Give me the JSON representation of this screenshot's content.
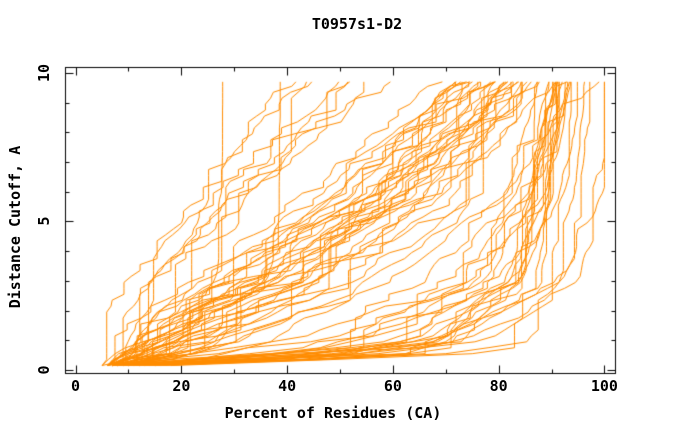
{
  "page": {
    "background": "#ffffff"
  },
  "chart_data": {
    "type": "line",
    "title": "T0957s1-D2",
    "xlabel": "Percent of Residues (CA)",
    "ylabel": "Distance Cutoff, A",
    "xlim": [
      0,
      100
    ],
    "ylim": [
      0,
      10
    ],
    "frame_xlim": [
      -2,
      102
    ],
    "frame_ylim": [
      -0.1,
      10.2
    ],
    "x_major_ticks": [
      0,
      20,
      40,
      60,
      80,
      100
    ],
    "x_minor_ticks": [
      10,
      30,
      50,
      70,
      90
    ],
    "y_major_ticks": [
      0,
      5,
      10
    ],
    "y_minor_ticks": [
      1,
      2,
      3,
      4,
      6,
      7,
      8,
      9
    ],
    "grid": false,
    "legend": "none",
    "tick_style": "inward, mirrored on all four sides",
    "frame_color": "#000000",
    "line_color": "#ff8c00",
    "series_model": {
      "description": "One orange curve per predicted model: percent of CA residues (x) fitting under each distance cutoff (y, Angstrom). Curves are monotone staircases estimated from pixels; each entry lists percent at cutoffs given in cutoff_knots.",
      "cutoff_knots": [
        0.15,
        0.5,
        1,
        3,
        6,
        9.7
      ],
      "curves": [
        [
          15,
          60,
          80,
          93,
          98,
          100
        ],
        [
          12,
          55,
          78,
          91,
          97,
          100
        ],
        [
          18,
          65,
          85,
          95,
          98,
          100
        ],
        [
          10,
          45,
          70,
          88,
          95,
          99
        ],
        [
          12,
          52,
          75,
          90,
          96,
          100
        ],
        [
          8,
          35,
          60,
          83,
          93,
          98
        ],
        [
          15,
          58,
          78,
          91,
          97,
          100
        ],
        [
          9,
          28,
          50,
          78,
          90,
          97
        ],
        [
          11,
          45,
          68,
          86,
          94,
          99
        ],
        [
          13,
          55,
          74,
          89,
          95,
          100
        ],
        [
          7,
          32,
          56,
          81,
          92,
          98
        ],
        [
          10,
          40,
          65,
          85,
          93,
          99
        ],
        [
          14,
          57,
          76,
          90,
          96,
          100
        ],
        [
          9,
          24,
          46,
          76,
          89,
          96
        ],
        [
          12,
          50,
          72,
          88,
          94,
          99
        ],
        [
          8,
          38,
          62,
          84,
          92,
          97
        ],
        [
          16,
          60,
          80,
          92,
          97,
          100
        ],
        [
          10,
          42,
          64,
          84,
          93,
          98
        ],
        [
          11,
          47,
          69,
          87,
          95,
          100
        ],
        [
          7,
          28,
          52,
          78,
          90,
          96
        ],
        [
          13,
          53,
          73,
          89,
          95,
          99
        ],
        [
          9,
          35,
          58,
          82,
          91,
          97
        ],
        [
          15,
          56,
          77,
          90,
          96,
          100
        ],
        [
          8,
          26,
          48,
          74,
          88,
          95
        ],
        [
          12,
          48,
          70,
          87,
          94,
          98
        ],
        [
          7,
          12,
          18,
          40,
          65,
          85
        ],
        [
          8,
          14,
          22,
          45,
          70,
          88
        ],
        [
          6,
          10,
          16,
          35,
          60,
          80
        ],
        [
          9,
          16,
          25,
          50,
          72,
          90
        ],
        [
          7,
          11,
          17,
          38,
          62,
          82
        ],
        [
          8,
          13,
          20,
          42,
          66,
          86
        ],
        [
          6,
          9,
          14,
          30,
          55,
          78
        ],
        [
          10,
          18,
          28,
          52,
          74,
          91
        ],
        [
          7,
          12,
          19,
          40,
          64,
          84
        ],
        [
          8,
          15,
          24,
          48,
          70,
          89
        ],
        [
          6,
          10,
          15,
          32,
          57,
          79
        ],
        [
          9,
          17,
          26,
          50,
          73,
          90
        ],
        [
          7,
          11,
          16,
          36,
          60,
          81
        ],
        [
          8,
          14,
          21,
          44,
          68,
          87
        ],
        [
          6,
          9,
          13,
          28,
          52,
          76
        ],
        [
          10,
          19,
          30,
          54,
          76,
          92
        ],
        [
          7,
          12,
          18,
          39,
          63,
          83
        ],
        [
          8,
          13,
          20,
          43,
          67,
          86
        ],
        [
          6,
          10,
          15,
          33,
          58,
          80
        ],
        [
          9,
          16,
          25,
          49,
          71,
          89
        ],
        [
          7,
          11,
          17,
          37,
          61,
          82
        ],
        [
          8,
          14,
          22,
          46,
          69,
          88
        ],
        [
          6,
          9,
          14,
          29,
          54,
          77
        ],
        [
          10,
          18,
          29,
          53,
          75,
          91
        ],
        [
          7,
          12,
          19,
          41,
          65,
          85
        ],
        [
          8,
          15,
          23,
          47,
          70,
          88
        ],
        [
          6,
          10,
          16,
          34,
          59,
          80
        ],
        [
          9,
          17,
          27,
          51,
          73,
          90
        ],
        [
          7,
          13,
          20,
          42,
          66,
          85
        ],
        [
          8,
          14,
          21,
          45,
          68,
          87
        ],
        [
          7,
          12,
          18,
          44,
          70,
          93
        ],
        [
          9,
          15,
          24,
          55,
          78,
          94
        ],
        [
          6,
          11,
          17,
          36,
          62,
          86
        ],
        [
          8,
          16,
          26,
          58,
          80,
          95
        ],
        [
          7,
          13,
          21,
          47,
          72,
          92
        ],
        [
          6,
          8,
          11,
          20,
          35,
          55
        ],
        [
          6,
          9,
          12,
          22,
          38,
          58
        ],
        [
          5,
          8,
          10,
          18,
          32,
          50
        ],
        [
          6,
          9,
          13,
          24,
          40,
          62
        ],
        [
          5,
          7,
          10,
          17,
          30,
          48
        ],
        [
          6,
          8,
          12,
          21,
          36,
          56
        ],
        [
          5,
          8,
          11,
          19,
          34,
          52
        ],
        [
          6,
          9,
          12,
          23,
          39,
          60
        ],
        [
          10,
          15,
          22,
          32,
          35,
          35.5
        ],
        [
          9,
          18,
          28,
          43,
          46,
          46.5
        ]
      ]
    }
  }
}
